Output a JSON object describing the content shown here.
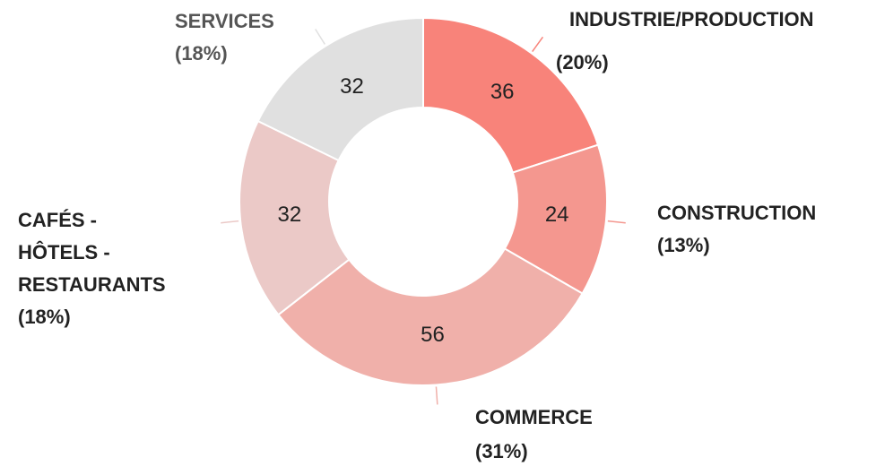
{
  "chart_data": {
    "type": "donut",
    "categories": [
      "INDUSTRIE/PRODUCTION",
      "CONSTRUCTION",
      "COMMERCE",
      "CAFÉS - HÔTELS - RESTAURANTS",
      "SERVICES"
    ],
    "values": [
      36,
      24,
      56,
      32,
      32
    ],
    "percent_labels": [
      "(20%)",
      "(13%)",
      "(31%)",
      "(18%)",
      "(18%)"
    ],
    "colors": [
      "#f8837a",
      "#f4978f",
      "#f0b0aa",
      "#ebc9c7",
      "#e0e0e0"
    ]
  }
}
